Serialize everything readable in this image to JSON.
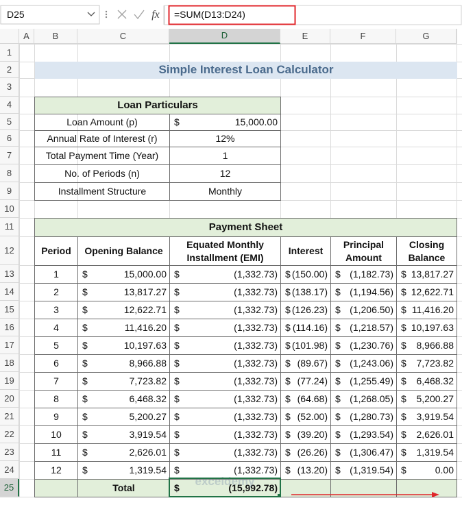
{
  "formula_bar": {
    "name_box": "D25",
    "function_label": "fx",
    "formula": "=SUM(D13:D24)"
  },
  "column_headers": [
    "A",
    "B",
    "C",
    "D",
    "E",
    "F",
    "G"
  ],
  "row_headers": [
    "1",
    "2",
    "3",
    "4",
    "5",
    "6",
    "7",
    "8",
    "9",
    "10",
    "11",
    "12",
    "13",
    "14",
    "15",
    "16",
    "17",
    "18",
    "19",
    "20",
    "21",
    "22",
    "23",
    "24",
    "25"
  ],
  "title": "Simple Interest Loan Calculator",
  "loan_particulars": {
    "header": "Loan Particulars",
    "rows": [
      {
        "label": "Loan Amount (p)",
        "currency": "$",
        "value": "15,000.00"
      },
      {
        "label": "Annual Rate of Interest (r)",
        "value": "12%"
      },
      {
        "label": "Total Payment Time (Year)",
        "value": "1"
      },
      {
        "label": "No. of Periods (n)",
        "value": "12"
      },
      {
        "label": "Installment Structure",
        "value": "Monthly"
      }
    ]
  },
  "payment_sheet": {
    "header": "Payment Sheet",
    "columns": [
      "Period",
      "Opening Balance",
      "Equated Monthly Installment (EMI)",
      "Interest",
      "Principal Amount",
      "Closing Balance"
    ],
    "rows": [
      [
        "1",
        "$",
        "15,000.00",
        "$",
        "(1,332.73)",
        "$",
        "(150.00)",
        "$",
        "(1,182.73)",
        "$",
        "13,817.27"
      ],
      [
        "2",
        "$",
        "13,817.27",
        "$",
        "(1,332.73)",
        "$",
        "(138.17)",
        "$",
        "(1,194.56)",
        "$",
        "12,622.71"
      ],
      [
        "3",
        "$",
        "12,622.71",
        "$",
        "(1,332.73)",
        "$",
        "(126.23)",
        "$",
        "(1,206.50)",
        "$",
        "11,416.20"
      ],
      [
        "4",
        "$",
        "11,416.20",
        "$",
        "(1,332.73)",
        "$",
        "(114.16)",
        "$",
        "(1,218.57)",
        "$",
        "10,197.63"
      ],
      [
        "5",
        "$",
        "10,197.63",
        "$",
        "(1,332.73)",
        "$",
        "(101.98)",
        "$",
        "(1,230.76)",
        "$",
        "8,966.88"
      ],
      [
        "6",
        "$",
        "8,966.88",
        "$",
        "(1,332.73)",
        "$",
        "(89.67)",
        "$",
        "(1,243.06)",
        "$",
        "7,723.82"
      ],
      [
        "7",
        "$",
        "7,723.82",
        "$",
        "(1,332.73)",
        "$",
        "(77.24)",
        "$",
        "(1,255.49)",
        "$",
        "6,468.32"
      ],
      [
        "8",
        "$",
        "6,468.32",
        "$",
        "(1,332.73)",
        "$",
        "(64.68)",
        "$",
        "(1,268.05)",
        "$",
        "5,200.27"
      ],
      [
        "9",
        "$",
        "5,200.27",
        "$",
        "(1,332.73)",
        "$",
        "(52.00)",
        "$",
        "(1,280.73)",
        "$",
        "3,919.54"
      ],
      [
        "10",
        "$",
        "3,919.54",
        "$",
        "(1,332.73)",
        "$",
        "(39.20)",
        "$",
        "(1,293.54)",
        "$",
        "2,626.01"
      ],
      [
        "11",
        "$",
        "2,626.01",
        "$",
        "(1,332.73)",
        "$",
        "(26.26)",
        "$",
        "(1,306.47)",
        "$",
        "1,319.54"
      ],
      [
        "12",
        "$",
        "1,319.54",
        "$",
        "(1,332.73)",
        "$",
        "(13.20)",
        "$",
        "(1,319.54)",
        "$",
        "0.00"
      ]
    ],
    "total": {
      "label": "Total",
      "currency": "$",
      "value": "(15,992.78)"
    }
  },
  "watermark": "exceldemy"
}
